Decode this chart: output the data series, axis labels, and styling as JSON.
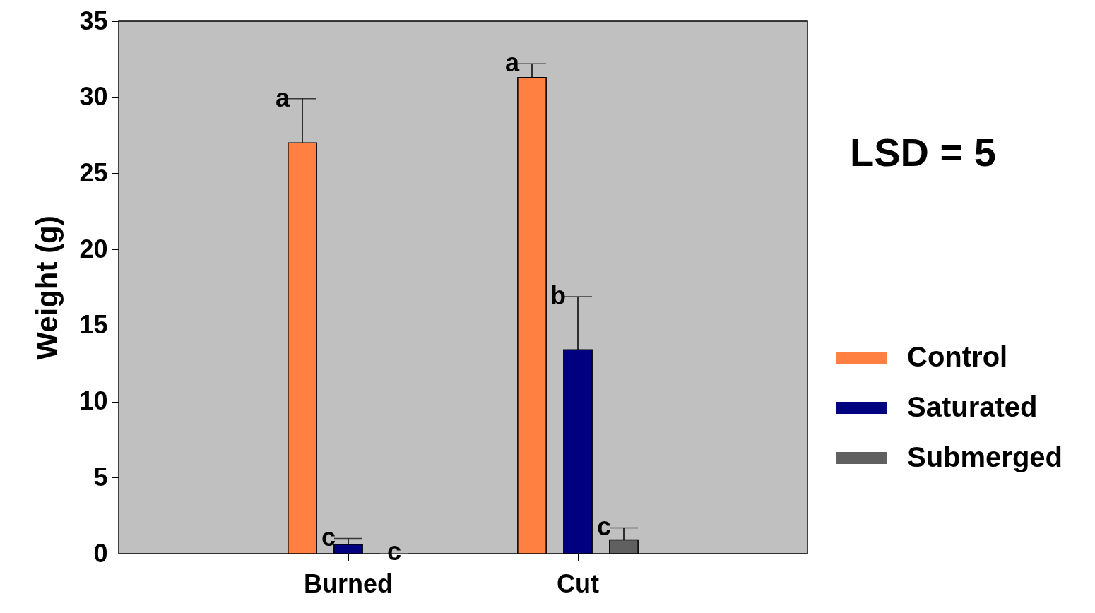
{
  "chart_data": {
    "type": "bar",
    "ylabel": "Weight (g)",
    "categories": [
      "Burned",
      "Cut"
    ],
    "series": [
      {
        "name": "Control",
        "color": "#ff8040",
        "values": [
          27,
          31.3
        ],
        "errors": [
          [
            27,
            29.9
          ],
          [
            31.3,
            32.2
          ]
        ],
        "value_labels": [
          "a",
          "a"
        ]
      },
      {
        "name": "Saturated",
        "color": "#000080",
        "values": [
          0.6,
          13.4
        ],
        "errors": [
          [
            0.6,
            1.0
          ],
          [
            13.4,
            16.9
          ]
        ],
        "value_labels": [
          "c",
          "b"
        ]
      },
      {
        "name": "Submerged",
        "color": "#606060",
        "values": [
          0,
          0.9
        ],
        "errors": [
          null,
          [
            0.9,
            1.7
          ]
        ],
        "value_labels": [
          "c",
          "c"
        ]
      }
    ],
    "ylim": [
      0,
      35
    ],
    "yticks": [
      0,
      5,
      10,
      15,
      20,
      25,
      30,
      35
    ],
    "legend": "right",
    "grid": false,
    "annotations": [
      "LSD = 5"
    ]
  }
}
